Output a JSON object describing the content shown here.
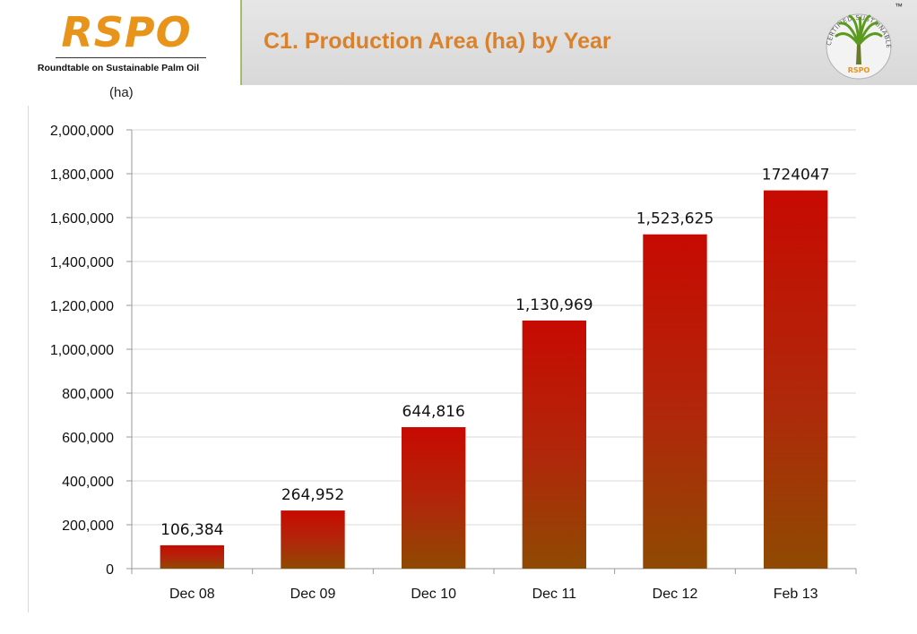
{
  "header": {
    "logo": "RSPO",
    "tagline": "Roundtable on Sustainable Palm Oil",
    "title": "C1. Production Area (ha) by Year",
    "seal": {
      "top_text": "CERTIFIED SUSTAINABLE PALM OIL",
      "bottom_text": "RSPO",
      "trademark": "™"
    }
  },
  "colors": {
    "title": "#d9822b",
    "logo": "#e8931a",
    "bar_top": "#c70a02",
    "bar_bottom": "#8f4a02",
    "grid": "#d9d9d9"
  },
  "chart_data": {
    "type": "bar",
    "title": "",
    "ylabel": "(ha)",
    "xlabel": "",
    "categories": [
      "Dec 08",
      "Dec 09",
      "Dec 10",
      "Dec 11",
      "Dec 12",
      "Feb 13"
    ],
    "values": [
      106384,
      264952,
      644816,
      1130969,
      1523625,
      1724047
    ],
    "data_labels": [
      "106,384",
      "264,952",
      "644,816",
      "1,130,969",
      "1,523,625",
      "1724047"
    ],
    "ylim": [
      0,
      2000000
    ],
    "yticks": [
      0,
      200000,
      400000,
      600000,
      800000,
      1000000,
      1200000,
      1400000,
      1600000,
      1800000,
      2000000
    ],
    "ytick_labels": [
      "0",
      "200,000",
      "400,000",
      "600,000",
      "800,000",
      "1,000,000",
      "1,200,000",
      "1,400,000",
      "1,600,000",
      "1,800,000",
      "2,000,000"
    ],
    "grid": true,
    "legend": "none"
  }
}
